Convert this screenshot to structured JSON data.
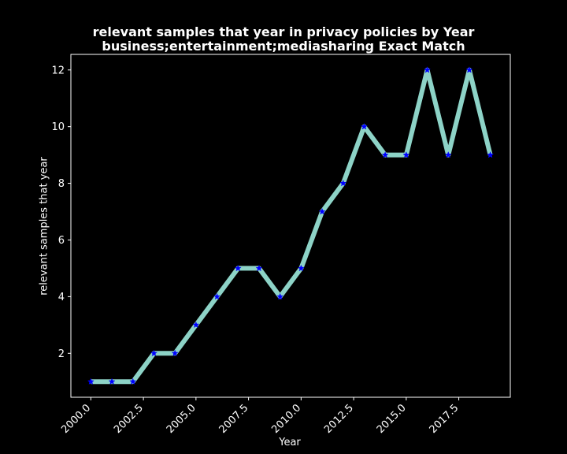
{
  "chart_data": {
    "type": "line",
    "title": "relevant samples that year in privacy policies by Year",
    "subtitle": "business;entertainment;mediasharing Exact Match",
    "xlabel": "Year",
    "ylabel": "relevant samples that year",
    "x": [
      2000,
      2001,
      2002,
      2003,
      2004,
      2005,
      2006,
      2007,
      2008,
      2009,
      2010,
      2011,
      2012,
      2013,
      2014,
      2015,
      2016,
      2017,
      2018,
      2019
    ],
    "series": [
      {
        "values": [
          1,
          1,
          1,
          2,
          2,
          3,
          4,
          5,
          5,
          4,
          5,
          7,
          8,
          10,
          9,
          9,
          12,
          9,
          12,
          9
        ],
        "line_color": "#8dd3c7",
        "marker_color": "#0000ff",
        "marker": "star"
      }
    ],
    "xlim": [
      1999.05,
      2019.95
    ],
    "ylim": [
      0.45,
      12.55
    ],
    "xticks": [
      2000.0,
      2002.5,
      2005.0,
      2007.5,
      2010.0,
      2012.5,
      2015.0,
      2017.5
    ],
    "xtick_labels": [
      "2000.0",
      "2002.5",
      "2005.0",
      "2007.5",
      "2010.0",
      "2012.5",
      "2015.0",
      "2017.5"
    ],
    "yticks": [
      2,
      4,
      6,
      8,
      10,
      12
    ],
    "ytick_labels": [
      "2",
      "4",
      "6",
      "8",
      "10",
      "12"
    ],
    "grid": false,
    "background": "#000000",
    "axis_color": "#ffffff"
  }
}
